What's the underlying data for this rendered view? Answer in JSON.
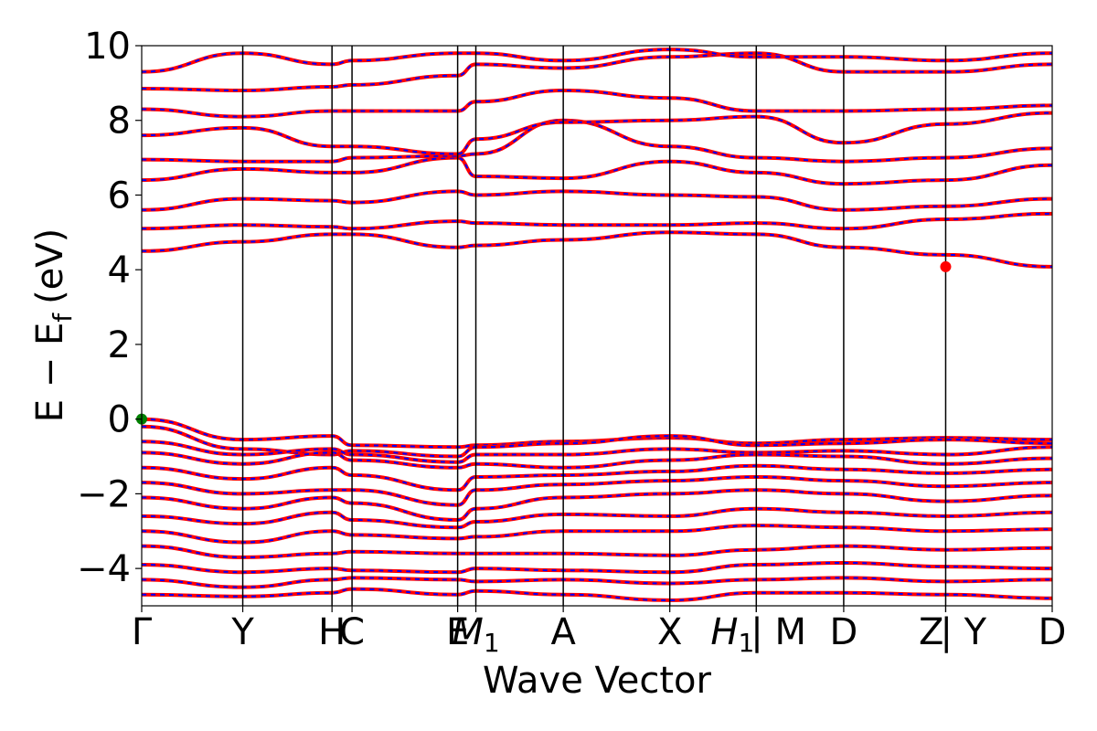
{
  "chart_data": {
    "type": "line",
    "title": "",
    "xlabel": "Wave Vector",
    "ylabel": "E − E",
    "ylabel_sub": "f",
    "ylabel_unit": "(eV)",
    "ylim": [
      -5,
      10
    ],
    "yticks": [
      -4,
      -2,
      0,
      2,
      4,
      6,
      8,
      10
    ],
    "ytick_labels": [
      "−4",
      "−2",
      "0",
      "2",
      "4",
      "6",
      "8",
      "10"
    ],
    "high_symmetry_points": [
      {
        "label": "Γ",
        "k": 0.0
      },
      {
        "label": "Y",
        "k": 0.111
      },
      {
        "label": "H",
        "k": 0.209
      },
      {
        "label": "C",
        "k": 0.231
      },
      {
        "label": "E",
        "k": 0.347
      },
      {
        "label": "M",
        "sub": "1",
        "k": 0.367
      },
      {
        "label": "A",
        "k": 0.463
      },
      {
        "label": "X",
        "k": 0.58
      },
      {
        "label": "H",
        "sub": "1",
        "k": 0.675
      },
      {
        "label": "| M",
        "k": 0.675
      },
      {
        "label": "D",
        "k": 0.771
      },
      {
        "label": "Z",
        "k": 0.883
      },
      {
        "label": "| Y",
        "k": 0.883
      },
      {
        "label": "D",
        "k": 1.0
      }
    ],
    "series": [
      {
        "color": "#ff0000",
        "style": "solid"
      },
      {
        "color": "#0000ff",
        "style": "dashed"
      }
    ],
    "markers": [
      {
        "label": "VBM",
        "k": 0.0,
        "energy": 0.0,
        "color": "#008000"
      },
      {
        "label": "CBM",
        "k": 0.883,
        "energy": 4.08,
        "color": "#ff0000"
      }
    ],
    "valence_bands": [
      [
        0.0,
        -0.55,
        -0.45,
        -0.7,
        -0.75,
        -0.7,
        -0.6,
        -0.5,
        -0.65,
        -0.55,
        -0.5,
        -0.55,
        -0.45,
        -0.5
      ],
      [
        -0.2,
        -0.8,
        -0.95,
        -0.85,
        -1.0,
        -0.75,
        -0.65,
        -0.45,
        -0.7,
        -0.65,
        -0.55,
        -0.65,
        -0.65,
        -0.55
      ],
      [
        -0.6,
        -0.95,
        -0.8,
        -0.95,
        -1.15,
        -0.95,
        -0.95,
        -0.8,
        -0.9,
        -0.85,
        -0.95,
        -0.75,
        -0.85,
        -0.7
      ],
      [
        -0.9,
        -1.2,
        -0.9,
        -1.1,
        -1.3,
        -1.2,
        -1.3,
        -1.1,
        -0.95,
        -1.0,
        -1.2,
        -1.05,
        -1.1,
        -1.0
      ],
      [
        -1.3,
        -1.6,
        -1.3,
        -1.5,
        -1.9,
        -1.55,
        -1.5,
        -1.4,
        -1.25,
        -1.35,
        -1.45,
        -1.35,
        -1.4,
        -1.35
      ],
      [
        -1.7,
        -2.0,
        -1.9,
        -1.9,
        -2.3,
        -1.9,
        -1.75,
        -1.65,
        -1.55,
        -1.65,
        -1.8,
        -1.7,
        -1.7,
        -1.6
      ],
      [
        -2.1,
        -2.4,
        -2.1,
        -2.25,
        -2.7,
        -2.4,
        -2.1,
        -2.0,
        -1.9,
        -2.0,
        -2.2,
        -2.05,
        -2.1,
        -2.0
      ],
      [
        -2.6,
        -2.8,
        -2.5,
        -2.7,
        -2.9,
        -2.75,
        -2.55,
        -2.6,
        -2.4,
        -2.5,
        -2.6,
        -2.5,
        -2.6,
        -2.4
      ],
      [
        -3.0,
        -3.3,
        -3.0,
        -3.1,
        -3.2,
        -3.15,
        -3.0,
        -3.0,
        -2.85,
        -2.9,
        -3.0,
        -2.95,
        -3.05,
        -2.9
      ],
      [
        -3.4,
        -3.7,
        -3.6,
        -3.55,
        -3.6,
        -3.6,
        -3.6,
        -3.65,
        -3.5,
        -3.4,
        -3.5,
        -3.45,
        -3.4,
        -3.5
      ],
      [
        -3.9,
        -4.1,
        -4.0,
        -4.05,
        -4.1,
        -4.0,
        -4.05,
        -4.1,
        -3.9,
        -3.85,
        -3.95,
        -4.0,
        -3.95,
        -3.9
      ],
      [
        -4.3,
        -4.5,
        -4.3,
        -4.25,
        -4.3,
        -4.35,
        -4.3,
        -4.4,
        -4.3,
        -4.25,
        -4.35,
        -4.3,
        -4.3,
        -4.3
      ],
      [
        -4.7,
        -4.75,
        -4.65,
        -4.55,
        -4.7,
        -4.6,
        -4.7,
        -4.85,
        -4.65,
        -4.65,
        -4.7,
        -4.8,
        -4.7,
        -4.65
      ]
    ],
    "conduction_bands": [
      [
        4.5,
        4.75,
        4.95,
        4.95,
        4.6,
        4.65,
        4.8,
        5.0,
        4.95,
        4.6,
        4.4,
        4.08,
        4.7,
        4.4
      ],
      [
        5.1,
        5.2,
        5.15,
        5.1,
        5.3,
        5.25,
        5.2,
        5.2,
        5.25,
        5.1,
        5.35,
        5.5,
        5.5,
        5.6
      ],
      [
        5.6,
        5.9,
        5.85,
        5.8,
        6.1,
        6.0,
        6.1,
        6.0,
        5.95,
        5.6,
        5.7,
        5.9,
        6.0,
        5.75
      ],
      [
        6.4,
        6.7,
        6.6,
        6.6,
        7.0,
        6.5,
        6.45,
        6.9,
        6.6,
        6.3,
        6.4,
        6.8,
        6.5,
        6.3
      ],
      [
        6.95,
        6.9,
        6.9,
        7.0,
        7.05,
        7.1,
        8.0,
        7.3,
        7.0,
        6.9,
        7.0,
        7.25,
        6.9,
        6.9
      ],
      [
        7.6,
        7.8,
        7.3,
        7.3,
        7.1,
        7.5,
        7.95,
        8.0,
        8.1,
        7.4,
        7.9,
        8.2,
        7.9,
        8.1
      ],
      [
        8.3,
        8.1,
        8.25,
        8.25,
        8.25,
        8.5,
        8.8,
        8.6,
        8.25,
        8.25,
        8.3,
        8.4,
        8.8,
        8.85
      ],
      [
        8.85,
        8.8,
        8.9,
        8.95,
        9.2,
        9.5,
        9.4,
        9.7,
        9.8,
        9.3,
        9.3,
        9.5,
        9.3,
        9.3
      ],
      [
        9.3,
        9.8,
        9.5,
        9.6,
        9.8,
        9.8,
        9.6,
        9.9,
        9.7,
        9.7,
        9.6,
        9.8,
        9.8,
        9.7
      ]
    ]
  }
}
